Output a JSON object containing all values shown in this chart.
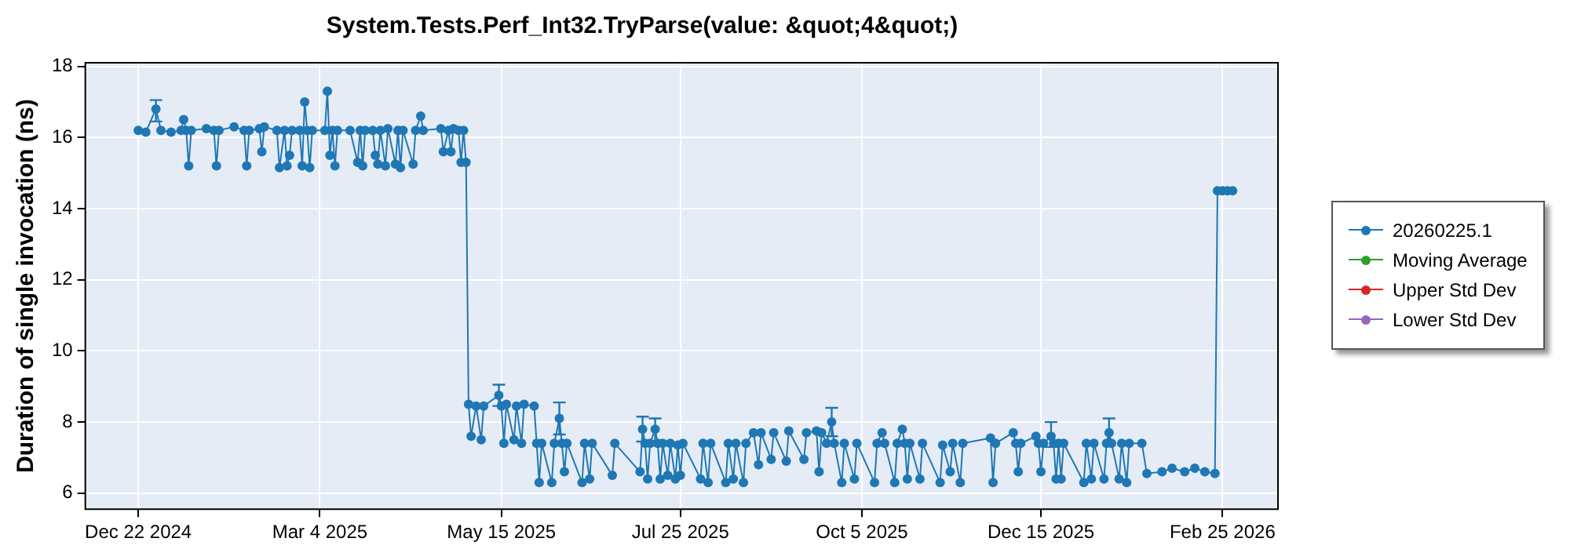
{
  "chart_data": {
    "type": "line",
    "title": "System.Tests.Perf_Int32.TryParse(value: &quot;4&quot;)",
    "ylabel": "Duration of single invocation (ns)",
    "x": [
      "2024-12-22",
      "2024-12-25",
      "2024-12-29",
      "2024-12-31",
      "2025-01-04",
      "2025-01-08",
      "2025-01-09",
      "2025-01-10",
      "2025-01-11",
      "2025-01-12",
      "2025-01-18",
      "2025-01-21",
      "2025-01-22",
      "2025-01-23",
      "2025-01-29",
      "2025-02-02",
      "2025-02-03",
      "2025-02-04",
      "2025-02-08",
      "2025-02-09",
      "2025-02-10",
      "2025-02-15",
      "2025-02-16",
      "2025-02-18",
      "2025-02-19",
      "2025-02-20",
      "2025-02-21",
      "2025-02-24",
      "2025-02-25",
      "2025-02-26",
      "2025-02-27",
      "2025-02-28",
      "2025-03-01",
      "2025-03-06",
      "2025-03-07",
      "2025-03-08",
      "2025-03-09",
      "2025-03-10",
      "2025-03-11",
      "2025-03-16",
      "2025-03-19",
      "2025-03-20",
      "2025-03-21",
      "2025-03-22",
      "2025-03-25",
      "2025-03-26",
      "2025-03-27",
      "2025-03-28",
      "2025-03-30",
      "2025-03-31",
      "2025-04-03",
      "2025-04-04",
      "2025-04-05",
      "2025-04-06",
      "2025-04-10",
      "2025-04-11",
      "2025-04-13",
      "2025-04-14",
      "2025-04-21",
      "2025-04-22",
      "2025-04-24",
      "2025-04-25",
      "2025-04-26",
      "2025-04-28",
      "2025-04-29",
      "2025-04-30",
      "2025-05-01",
      "2025-05-02",
      "2025-05-03",
      "2025-05-05",
      "2025-05-07",
      "2025-05-08",
      "2025-05-14",
      "2025-05-15",
      "2025-05-16",
      "2025-05-17",
      "2025-05-20",
      "2025-05-21",
      "2025-05-23",
      "2025-05-24",
      "2025-05-28",
      "2025-05-29",
      "2025-05-30",
      "2025-05-31",
      "2025-06-04",
      "2025-06-05",
      "2025-06-07",
      "2025-06-08",
      "2025-06-09",
      "2025-06-10",
      "2025-06-16",
      "2025-06-17",
      "2025-06-19",
      "2025-06-20",
      "2025-06-28",
      "2025-06-29",
      "2025-07-09",
      "2025-07-10",
      "2025-07-11",
      "2025-07-12",
      "2025-07-13",
      "2025-07-15",
      "2025-07-16",
      "2025-07-17",
      "2025-07-18",
      "2025-07-20",
      "2025-07-21",
      "2025-07-23",
      "2025-07-24",
      "2025-07-25",
      "2025-07-26",
      "2025-08-02",
      "2025-08-03",
      "2025-08-05",
      "2025-08-06",
      "2025-08-12",
      "2025-08-13",
      "2025-08-15",
      "2025-08-16",
      "2025-08-19",
      "2025-08-20",
      "2025-08-23",
      "2025-08-25",
      "2025-08-26",
      "2025-08-30",
      "2025-08-31",
      "2025-09-05",
      "2025-09-06",
      "2025-09-12",
      "2025-09-13",
      "2025-09-17",
      "2025-09-18",
      "2025-09-19",
      "2025-09-21",
      "2025-09-23",
      "2025-09-24",
      "2025-09-27",
      "2025-09-28",
      "2025-10-02",
      "2025-10-03",
      "2025-10-10",
      "2025-10-11",
      "2025-10-13",
      "2025-10-14",
      "2025-10-18",
      "2025-10-19",
      "2025-10-21",
      "2025-10-22",
      "2025-10-23",
      "2025-10-24",
      "2025-10-28",
      "2025-10-29",
      "2025-11-05",
      "2025-11-06",
      "2025-11-09",
      "2025-11-10",
      "2025-11-13",
      "2025-11-14",
      "2025-11-25",
      "2025-11-26",
      "2025-11-27",
      "2025-12-04",
      "2025-12-05",
      "2025-12-06",
      "2025-12-07",
      "2025-12-13",
      "2025-12-14",
      "2025-12-15",
      "2025-12-16",
      "2025-12-19",
      "2025-12-20",
      "2025-12-21",
      "2025-12-22",
      "2025-12-23",
      "2025-12-24",
      "2026-01-01",
      "2026-01-02",
      "2026-01-04",
      "2026-01-05",
      "2026-01-09",
      "2026-01-10",
      "2026-01-11",
      "2026-01-12",
      "2026-01-15",
      "2026-01-16",
      "2026-01-18",
      "2026-01-19",
      "2026-01-24",
      "2026-01-26",
      "2026-02-01",
      "2026-02-05",
      "2026-02-10",
      "2026-02-14",
      "2026-02-18",
      "2026-02-22",
      "2026-02-23",
      "2026-02-25",
      "2026-02-27",
      "2026-03-01"
    ],
    "series": [
      {
        "name": "20260225.1",
        "color": "#1f77b4",
        "values": [
          16.2,
          16.15,
          16.8,
          16.2,
          16.15,
          16.2,
          16.5,
          16.2,
          15.2,
          16.2,
          16.25,
          16.2,
          15.2,
          16.2,
          16.3,
          16.2,
          15.2,
          16.2,
          16.25,
          15.6,
          16.3,
          16.2,
          15.15,
          16.2,
          15.2,
          15.5,
          16.2,
          16.2,
          15.2,
          17.0,
          16.2,
          15.15,
          16.2,
          16.2,
          17.3,
          15.5,
          16.2,
          15.2,
          16.2,
          16.2,
          15.3,
          16.2,
          15.2,
          16.2,
          16.2,
          15.5,
          15.25,
          16.2,
          15.2,
          16.25,
          15.25,
          16.2,
          15.15,
          16.2,
          15.25,
          16.2,
          16.6,
          16.2,
          16.25,
          15.6,
          16.2,
          15.6,
          16.25,
          16.2,
          15.3,
          16.2,
          15.3,
          8.5,
          7.6,
          8.45,
          7.5,
          8.45,
          8.75,
          8.45,
          7.4,
          8.5,
          7.5,
          8.45,
          7.4,
          8.5,
          8.45,
          7.4,
          6.3,
          7.4,
          6.3,
          7.4,
          8.1,
          7.4,
          6.6,
          7.4,
          6.3,
          7.4,
          6.4,
          7.4,
          6.5,
          7.4,
          6.6,
          7.8,
          7.4,
          6.4,
          7.4,
          7.8,
          7.4,
          6.4,
          7.4,
          6.5,
          7.4,
          6.4,
          7.35,
          6.5,
          7.4,
          6.4,
          7.4,
          6.3,
          7.4,
          6.3,
          7.4,
          6.4,
          7.4,
          6.3,
          7.4,
          7.7,
          6.8,
          7.7,
          6.95,
          7.7,
          6.9,
          7.75,
          6.95,
          7.7,
          7.75,
          6.6,
          7.7,
          7.4,
          8.0,
          7.4,
          6.3,
          7.4,
          6.4,
          7.4,
          6.3,
          7.4,
          7.7,
          7.4,
          6.3,
          7.4,
          7.8,
          7.4,
          6.4,
          7.4,
          6.4,
          7.4,
          6.3,
          7.35,
          6.6,
          7.4,
          6.3,
          7.4,
          7.55,
          6.3,
          7.4,
          7.7,
          7.4,
          6.6,
          7.4,
          7.6,
          7.4,
          6.6,
          7.4,
          7.6,
          7.4,
          6.4,
          7.4,
          6.4,
          7.4,
          6.3,
          7.4,
          6.4,
          7.4,
          6.4,
          7.4,
          7.7,
          7.4,
          6.4,
          7.4,
          6.3,
          7.4,
          7.4,
          6.55,
          6.6,
          6.7,
          6.6,
          6.7,
          6.6,
          6.55,
          14.5,
          14.5,
          14.5,
          14.5
        ],
        "errors": [
          null,
          null,
          [
            16.45,
            17.05
          ],
          null,
          null,
          null,
          null,
          null,
          null,
          null,
          null,
          null,
          null,
          null,
          null,
          null,
          null,
          null,
          null,
          null,
          null,
          null,
          null,
          null,
          null,
          null,
          null,
          null,
          null,
          null,
          null,
          null,
          null,
          null,
          null,
          null,
          null,
          null,
          null,
          null,
          null,
          null,
          null,
          null,
          null,
          null,
          null,
          null,
          null,
          null,
          null,
          null,
          null,
          null,
          null,
          null,
          null,
          null,
          null,
          null,
          null,
          null,
          null,
          null,
          null,
          null,
          null,
          null,
          null,
          null,
          null,
          null,
          [
            8.45,
            9.05
          ],
          null,
          null,
          null,
          null,
          null,
          null,
          null,
          null,
          null,
          null,
          null,
          null,
          null,
          [
            7.65,
            8.55
          ],
          null,
          null,
          null,
          null,
          null,
          null,
          null,
          null,
          null,
          null,
          [
            7.45,
            8.15
          ],
          null,
          null,
          null,
          [
            7.45,
            8.1
          ],
          null,
          null,
          null,
          null,
          null,
          null,
          null,
          null,
          null,
          null,
          null,
          null,
          null,
          null,
          null,
          null,
          null,
          null,
          null,
          null,
          null,
          null,
          null,
          null,
          null,
          null,
          null,
          null,
          null,
          null,
          null,
          null,
          [
            7.6,
            8.4
          ],
          null,
          null,
          null,
          null,
          null,
          null,
          null,
          null,
          null,
          null,
          null,
          null,
          null,
          null,
          null,
          null,
          null,
          null,
          null,
          null,
          null,
          null,
          null,
          null,
          null,
          null,
          null,
          null,
          null,
          null,
          null,
          null,
          null,
          null,
          [
            7.3,
            8.0
          ],
          null,
          null,
          null,
          null,
          null,
          null,
          null,
          null,
          null,
          null,
          null,
          [
            7.35,
            8.1
          ],
          null,
          null,
          null,
          null,
          null,
          null,
          null,
          null,
          null,
          null,
          null,
          null,
          null,
          null,
          null,
          null,
          null
        ]
      },
      {
        "name": "Moving Average",
        "color": "#2ca02c",
        "values": [
          null,
          null,
          null,
          null,
          null,
          null,
          null,
          null,
          null,
          null,
          null,
          null,
          null,
          null,
          null,
          null,
          null,
          null,
          null,
          null,
          null,
          null,
          null,
          null,
          null,
          null,
          null,
          null,
          null,
          null,
          null,
          null,
          null,
          null,
          null,
          null,
          null,
          null,
          null,
          null,
          null,
          null,
          null,
          null,
          null,
          null,
          null,
          null,
          null,
          null,
          null,
          null,
          null,
          null,
          null,
          null,
          null,
          null,
          null,
          null,
          null,
          null,
          null,
          null,
          null,
          null,
          null,
          null,
          null,
          null,
          null,
          null,
          null,
          null,
          null,
          null,
          null,
          null,
          null,
          null,
          null,
          null,
          null,
          null,
          null,
          null,
          null,
          null,
          null,
          null,
          null,
          null,
          null,
          null,
          null,
          null,
          null,
          null,
          null,
          null,
          null,
          null,
          null,
          null,
          null,
          null,
          null,
          null,
          null,
          null,
          null,
          null,
          null,
          null,
          null,
          null,
          null,
          null,
          null,
          null,
          null,
          null,
          null,
          null,
          null,
          null,
          null,
          null,
          null,
          null,
          null,
          null,
          null,
          null,
          null,
          null,
          null,
          null,
          null,
          null,
          null,
          null,
          null,
          null,
          null,
          null,
          null,
          null,
          null,
          null,
          null,
          null,
          null,
          null,
          null,
          null,
          null,
          null,
          null,
          null,
          null,
          null,
          null,
          null,
          null,
          null,
          null,
          null,
          null,
          null,
          null,
          null,
          null,
          null,
          null,
          null,
          null,
          null,
          null,
          null,
          null,
          null,
          null,
          null,
          null,
          null,
          null,
          null,
          null,
          null,
          null,
          null,
          null,
          null,
          null,
          null,
          null,
          null,
          null
        ]
      },
      {
        "name": "Upper Std Dev",
        "color": "#d62728",
        "values": [
          null,
          null,
          null,
          null,
          null,
          null,
          null,
          null,
          null,
          null,
          null,
          null,
          null,
          null,
          null,
          null,
          null,
          null,
          null,
          null,
          null,
          null,
          null,
          null,
          null,
          null,
          null,
          null,
          null,
          null,
          null,
          null,
          null,
          null,
          null,
          null,
          null,
          null,
          null,
          null,
          null,
          null,
          null,
          null,
          null,
          null,
          null,
          null,
          null,
          null,
          null,
          null,
          null,
          null,
          null,
          null,
          null,
          null,
          null,
          null,
          null,
          null,
          null,
          null,
          null,
          null,
          null,
          null,
          null,
          null,
          null,
          null,
          null,
          null,
          null,
          null,
          null,
          null,
          null,
          null,
          null,
          null,
          null,
          null,
          null,
          null,
          null,
          null,
          null,
          null,
          null,
          null,
          null,
          null,
          null,
          null,
          null,
          null,
          null,
          null,
          null,
          null,
          null,
          null,
          null,
          null,
          null,
          null,
          null,
          null,
          null,
          null,
          null,
          null,
          null,
          null,
          null,
          null,
          null,
          null,
          null,
          null,
          null,
          null,
          null,
          null,
          null,
          null,
          null,
          null,
          null,
          null,
          null,
          null,
          null,
          null,
          null,
          null,
          null,
          null,
          null,
          null,
          null,
          null,
          null,
          null,
          null,
          null,
          null,
          null,
          null,
          null,
          null,
          null,
          null,
          null,
          null,
          null,
          null,
          null,
          null,
          null,
          null,
          null,
          null,
          null,
          null,
          null,
          null,
          null,
          null,
          null,
          null,
          null,
          null,
          null,
          null,
          null,
          null,
          null,
          null,
          null,
          null,
          null,
          null,
          null,
          null,
          null,
          null,
          null,
          null,
          null,
          null,
          null,
          null,
          null,
          null,
          null,
          null
        ]
      },
      {
        "name": "Lower Std Dev",
        "color": "#9467bd",
        "values": [
          null,
          null,
          null,
          null,
          null,
          null,
          null,
          null,
          null,
          null,
          null,
          null,
          null,
          null,
          null,
          null,
          null,
          null,
          null,
          null,
          null,
          null,
          null,
          null,
          null,
          null,
          null,
          null,
          null,
          null,
          null,
          null,
          null,
          null,
          null,
          null,
          null,
          null,
          null,
          null,
          null,
          null,
          null,
          null,
          null,
          null,
          null,
          null,
          null,
          null,
          null,
          null,
          null,
          null,
          null,
          null,
          null,
          null,
          null,
          null,
          null,
          null,
          null,
          null,
          null,
          null,
          null,
          null,
          null,
          null,
          null,
          null,
          null,
          null,
          null,
          null,
          null,
          null,
          null,
          null,
          null,
          null,
          null,
          null,
          null,
          null,
          null,
          null,
          null,
          null,
          null,
          null,
          null,
          null,
          null,
          null,
          null,
          null,
          null,
          null,
          null,
          null,
          null,
          null,
          null,
          null,
          null,
          null,
          null,
          null,
          null,
          null,
          null,
          null,
          null,
          null,
          null,
          null,
          null,
          null,
          null,
          null,
          null,
          null,
          null,
          null,
          null,
          null,
          null,
          null,
          null,
          null,
          null,
          null,
          null,
          null,
          null,
          null,
          null,
          null,
          null,
          null,
          null,
          null,
          null,
          null,
          null,
          null,
          null,
          null,
          null,
          null,
          null,
          null,
          null,
          null,
          null,
          null,
          null,
          null,
          null,
          null,
          null,
          null,
          null,
          null,
          null,
          null,
          null,
          null,
          null,
          null,
          null,
          null,
          null,
          null,
          null,
          null,
          null,
          null,
          null,
          null,
          null,
          null,
          null,
          null,
          null,
          null,
          null,
          null,
          null,
          null,
          null,
          null,
          null,
          null,
          null,
          null,
          null
        ]
      }
    ],
    "xlim": [
      "2024-12-01",
      "2026-03-19"
    ],
    "xticks": [
      {
        "value": "2024-12-22",
        "label": "Dec 22 2024"
      },
      {
        "value": "2025-03-04",
        "label": "Mar 4 2025"
      },
      {
        "value": "2025-05-15",
        "label": "May 15 2025"
      },
      {
        "value": "2025-07-25",
        "label": "Jul 25 2025"
      },
      {
        "value": "2025-10-05",
        "label": "Oct 5 2025"
      },
      {
        "value": "2025-12-15",
        "label": "Dec 15 2025"
      },
      {
        "value": "2026-02-25",
        "label": "Feb 25 2026"
      }
    ],
    "ylim": [
      5.55,
      18.1
    ],
    "yticks": [
      6,
      8,
      10,
      12,
      14,
      16,
      18
    ],
    "grid": true,
    "legend": "right",
    "marker": "circle",
    "line_style": "solid"
  }
}
